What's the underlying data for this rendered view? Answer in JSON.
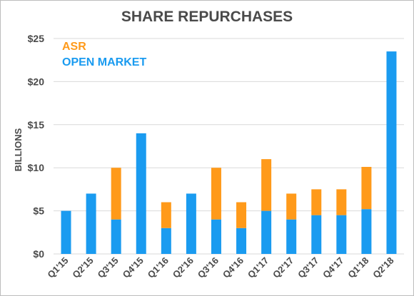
{
  "colors": {
    "open_market": "#1a9bf0",
    "asr": "#ff9a1a",
    "text": "#4a4a4a",
    "grid": "#d9d9d9"
  },
  "chart_data": {
    "type": "bar",
    "stacked": true,
    "title": "SHARE REPURCHASES",
    "xlabel": "",
    "ylabel": "BILLIONS",
    "ylim": [
      0,
      25
    ],
    "yticks": [
      0,
      5,
      10,
      15,
      20,
      25
    ],
    "ytick_labels": [
      "$0",
      "$5",
      "$10",
      "$15",
      "$20",
      "$25"
    ],
    "grid": "horizontal",
    "legend_position": "top-left",
    "categories": [
      "Q1'15",
      "Q2'15",
      "Q3'15",
      "Q4'15",
      "Q1'16",
      "Q2'16",
      "Q3'16",
      "Q4'16",
      "Q1'17",
      "Q2'17",
      "Q3'17",
      "Q4'17",
      "Q1'18",
      "Q2'18"
    ],
    "series": [
      {
        "name": "OPEN MARKET",
        "color": "#1a9bf0",
        "values": [
          5,
          7,
          4,
          14,
          3,
          7,
          4,
          3,
          5,
          4,
          4.5,
          4.5,
          5.2,
          23.5
        ]
      },
      {
        "name": "ASR",
        "color": "#ff9a1a",
        "values": [
          0,
          0,
          6,
          0,
          3,
          0,
          6,
          3,
          6,
          3,
          3,
          3,
          4.9,
          0
        ]
      }
    ]
  }
}
